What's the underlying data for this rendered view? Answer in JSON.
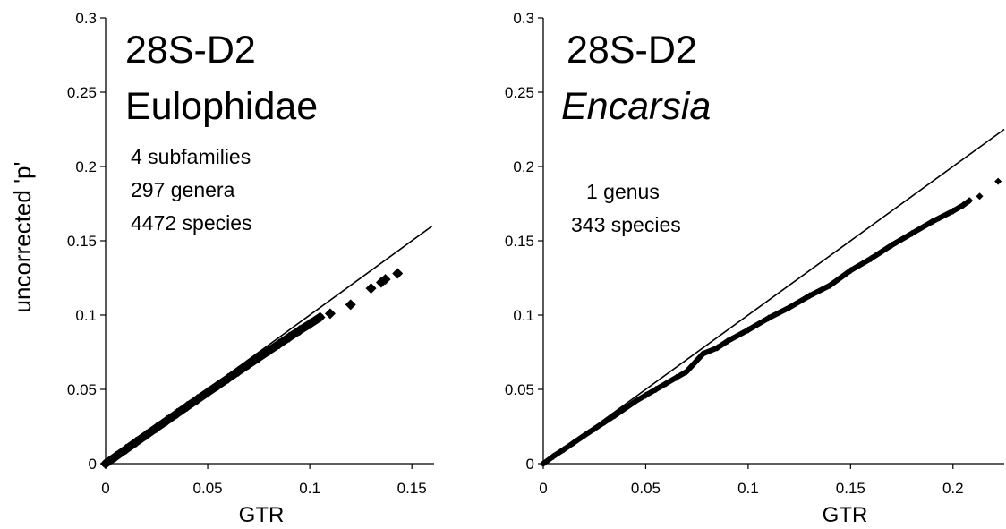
{
  "chart_data": [
    {
      "type": "scatter",
      "title": "28S-D2",
      "subtitle": "Eulophidae",
      "subtitle_italic": false,
      "annotations": [
        "4 subfamilies",
        "297 genera",
        "4472 species"
      ],
      "xlabel": "GTR",
      "ylabel": "uncorrected 'p'",
      "xlim": [
        0,
        0.16
      ],
      "ylim": [
        0,
        0.3
      ],
      "xticks": [
        "0",
        "0.05",
        "0.1",
        "0.15"
      ],
      "xtick_values": [
        0,
        0.05,
        0.1,
        0.15
      ],
      "yticks": [
        "0",
        "0.05",
        "0.1",
        "0.15",
        "0.2",
        "0.25",
        "0.3"
      ],
      "ytick_values": [
        0,
        0.05,
        0.1,
        0.15,
        0.2,
        0.25,
        0.3
      ],
      "grid": false,
      "reference_line": {
        "slope": 1,
        "x_end": 0.16
      },
      "series": [
        {
          "marker": "diamond",
          "color": "#000000",
          "x": [
            0,
            0.005,
            0.01,
            0.015,
            0.02,
            0.025,
            0.03,
            0.035,
            0.04,
            0.045,
            0.05,
            0.055,
            0.06,
            0.065,
            0.07,
            0.075,
            0.08,
            0.085,
            0.09,
            0.095,
            0.1,
            0.105,
            0.11,
            0.12,
            0.13,
            0.135,
            0.137,
            0.143
          ],
          "y": [
            0,
            0.0049,
            0.0097,
            0.0146,
            0.0194,
            0.0242,
            0.029,
            0.0338,
            0.0386,
            0.0433,
            0.048,
            0.0527,
            0.0574,
            0.0621,
            0.0668,
            0.0714,
            0.076,
            0.0806,
            0.0852,
            0.0897,
            0.094,
            0.0985,
            0.101,
            0.107,
            0.118,
            0.122,
            0.124,
            0.128
          ]
        }
      ]
    },
    {
      "type": "scatter",
      "title": "28S-D2",
      "subtitle": "Encarsia",
      "subtitle_italic": true,
      "annotations": [
        "1 genus",
        "343 species"
      ],
      "xlabel": "GTR",
      "ylabel": "",
      "xlim": [
        0,
        0.225
      ],
      "ylim": [
        0,
        0.3
      ],
      "xticks": [
        "0",
        "0.05",
        "0.1",
        "0.15",
        "0.2"
      ],
      "xtick_values": [
        0,
        0.05,
        0.1,
        0.15,
        0.2
      ],
      "yticks": [
        "0",
        "0.05",
        "0.1",
        "0.15",
        "0.2",
        "0.25",
        "0.3"
      ],
      "ytick_values": [
        0,
        0.05,
        0.1,
        0.15,
        0.2,
        0.25,
        0.3
      ],
      "grid": false,
      "reference_line": {
        "slope": 1,
        "x_end": 0.225
      },
      "series": [
        {
          "marker": "diamond",
          "color": "#000000",
          "x": [
            0,
            0.005,
            0.01,
            0.015,
            0.02,
            0.025,
            0.03,
            0.035,
            0.045,
            0.05,
            0.055,
            0.06,
            0.065,
            0.07,
            0.078,
            0.085,
            0.09,
            0.1,
            0.11,
            0.12,
            0.13,
            0.14,
            0.15,
            0.16,
            0.17,
            0.18,
            0.19,
            0.2,
            0.205,
            0.208,
            0.213,
            0.222
          ],
          "y": [
            0,
            0.005,
            0.0095,
            0.0142,
            0.019,
            0.0235,
            0.028,
            0.0325,
            0.042,
            0.046,
            0.05,
            0.054,
            0.058,
            0.062,
            0.074,
            0.078,
            0.0825,
            0.09,
            0.098,
            0.105,
            0.113,
            0.12,
            0.13,
            0.138,
            0.147,
            0.155,
            0.163,
            0.17,
            0.174,
            0.177,
            0.18,
            0.19
          ]
        }
      ]
    }
  ]
}
